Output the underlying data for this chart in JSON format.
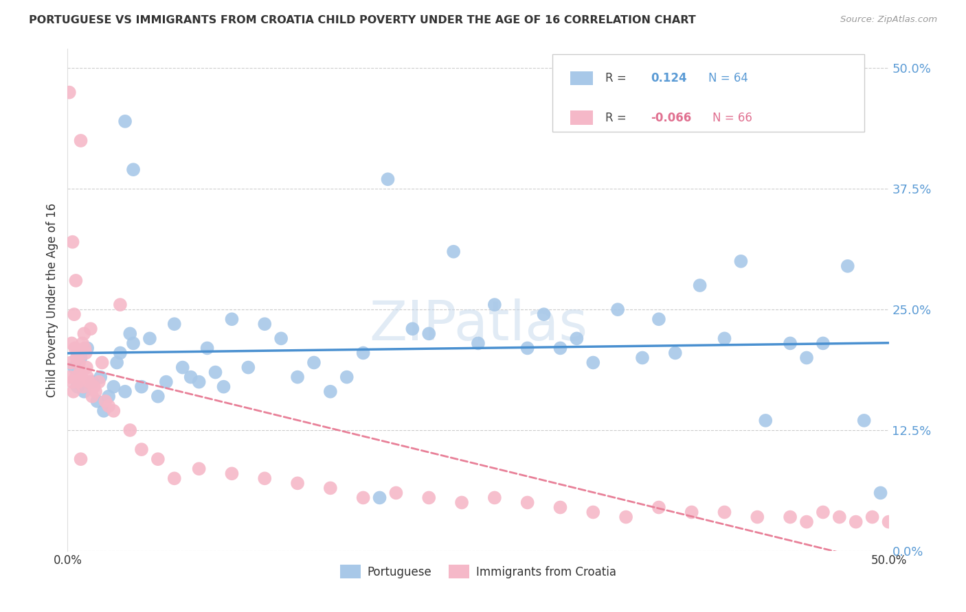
{
  "title": "PORTUGUESE VS IMMIGRANTS FROM CROATIA CHILD POVERTY UNDER THE AGE OF 16 CORRELATION CHART",
  "source": "Source: ZipAtlas.com",
  "ylabel": "Child Poverty Under the Age of 16",
  "ytick_values": [
    0.0,
    12.5,
    25.0,
    37.5,
    50.0
  ],
  "xlim": [
    0.0,
    50.0
  ],
  "ylim": [
    0.0,
    52.0
  ],
  "blue_color": "#a8c8e8",
  "pink_color": "#f5b8c8",
  "blue_line_color": "#4a90d0",
  "pink_line_color": "#e88098",
  "blue_r": 0.124,
  "blue_n": 64,
  "pink_r": -0.066,
  "pink_n": 66,
  "blue_x": [
    0.4,
    0.6,
    0.8,
    1.0,
    1.2,
    1.5,
    1.8,
    2.0,
    2.2,
    2.5,
    2.8,
    3.0,
    3.2,
    3.5,
    3.8,
    4.0,
    4.5,
    5.0,
    5.5,
    6.0,
    6.5,
    7.0,
    7.5,
    8.0,
    8.5,
    9.0,
    9.5,
    10.0,
    11.0,
    12.0,
    13.0,
    14.0,
    15.0,
    16.0,
    17.0,
    18.0,
    19.5,
    21.0,
    22.0,
    23.5,
    25.0,
    26.0,
    28.0,
    29.0,
    30.0,
    31.0,
    32.0,
    33.5,
    35.0,
    36.0,
    37.0,
    38.5,
    40.0,
    41.0,
    42.5,
    44.0,
    45.0,
    46.0,
    47.5,
    48.5,
    49.5,
    3.5,
    4.0,
    19.0
  ],
  "blue_y": [
    19.0,
    17.0,
    20.0,
    16.5,
    21.0,
    17.5,
    15.5,
    18.0,
    14.5,
    16.0,
    17.0,
    19.5,
    20.5,
    16.5,
    22.5,
    21.5,
    17.0,
    22.0,
    16.0,
    17.5,
    23.5,
    19.0,
    18.0,
    17.5,
    21.0,
    18.5,
    17.0,
    24.0,
    19.0,
    23.5,
    22.0,
    18.0,
    19.5,
    16.5,
    18.0,
    20.5,
    38.5,
    23.0,
    22.5,
    31.0,
    21.5,
    25.5,
    21.0,
    24.5,
    21.0,
    22.0,
    19.5,
    25.0,
    20.0,
    24.0,
    20.5,
    27.5,
    22.0,
    30.0,
    13.5,
    21.5,
    20.0,
    21.5,
    29.5,
    13.5,
    6.0,
    44.5,
    39.5,
    5.5
  ],
  "pink_x": [
    0.1,
    0.15,
    0.2,
    0.25,
    0.3,
    0.35,
    0.4,
    0.45,
    0.5,
    0.55,
    0.6,
    0.65,
    0.7,
    0.75,
    0.8,
    0.85,
    0.9,
    0.95,
    1.0,
    1.05,
    1.1,
    1.15,
    1.2,
    1.3,
    1.4,
    1.5,
    1.6,
    1.7,
    1.9,
    2.1,
    2.3,
    2.5,
    2.8,
    3.2,
    3.8,
    4.5,
    5.5,
    6.5,
    8.0,
    10.0,
    12.0,
    14.0,
    16.0,
    18.0,
    20.0,
    22.0,
    24.0,
    26.0,
    28.0,
    30.0,
    32.0,
    34.0,
    36.0,
    38.0,
    40.0,
    42.0,
    44.0,
    45.0,
    46.0,
    47.0,
    48.0,
    49.0,
    50.0,
    0.3,
    0.5,
    0.8
  ],
  "pink_y": [
    47.5,
    18.0,
    19.5,
    21.5,
    17.5,
    16.5,
    24.5,
    21.0,
    18.0,
    20.0,
    20.5,
    17.5,
    19.5,
    18.5,
    42.5,
    18.5,
    21.5,
    17.0,
    22.5,
    21.0,
    20.5,
    19.0,
    18.0,
    17.5,
    23.0,
    16.0,
    17.0,
    16.5,
    17.5,
    19.5,
    15.5,
    15.0,
    14.5,
    25.5,
    12.5,
    10.5,
    9.5,
    7.5,
    8.5,
    8.0,
    7.5,
    7.0,
    6.5,
    5.5,
    6.0,
    5.5,
    5.0,
    5.5,
    5.0,
    4.5,
    4.0,
    3.5,
    4.5,
    4.0,
    4.0,
    3.5,
    3.5,
    3.0,
    4.0,
    3.5,
    3.0,
    3.5,
    3.0,
    32.0,
    28.0,
    9.5
  ]
}
